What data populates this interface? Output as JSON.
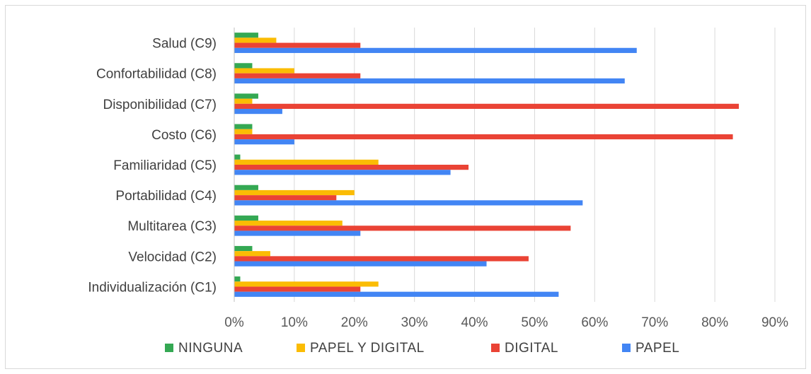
{
  "colors": {
    "NINGUNA": "#34a853",
    "PAPEL Y DIGITAL": "#fbbc04",
    "DIGITAL": "#ea4335",
    "PAPEL": "#4285f4"
  },
  "chart_data": {
    "type": "bar",
    "orientation": "horizontal",
    "categories": [
      "Salud (C9)",
      "Confortabilidad (C8)",
      "Disponibilidad (C7)",
      "Costo (C6)",
      "Familiaridad (C5)",
      "Portabilidad (C4)",
      "Multitarea (C3)",
      "Velocidad (C2)",
      "Individualización (C1)"
    ],
    "series": [
      {
        "name": "NINGUNA",
        "values": [
          4,
          3,
          4,
          3,
          1,
          4,
          4,
          3,
          1
        ]
      },
      {
        "name": "PAPEL Y DIGITAL",
        "values": [
          7,
          10,
          3,
          3,
          24,
          20,
          18,
          6,
          24
        ]
      },
      {
        "name": "DIGITAL",
        "values": [
          21,
          21,
          84,
          83,
          39,
          17,
          56,
          49,
          21
        ]
      },
      {
        "name": "PAPEL",
        "values": [
          67,
          65,
          8,
          10,
          36,
          58,
          21,
          42,
          54
        ]
      }
    ],
    "xlim": [
      0,
      90
    ],
    "xticks": [
      "0%",
      "10%",
      "20%",
      "30%",
      "40%",
      "50%",
      "60%",
      "70%",
      "80%",
      "90%"
    ],
    "grid": true,
    "legend_position": "bottom"
  }
}
